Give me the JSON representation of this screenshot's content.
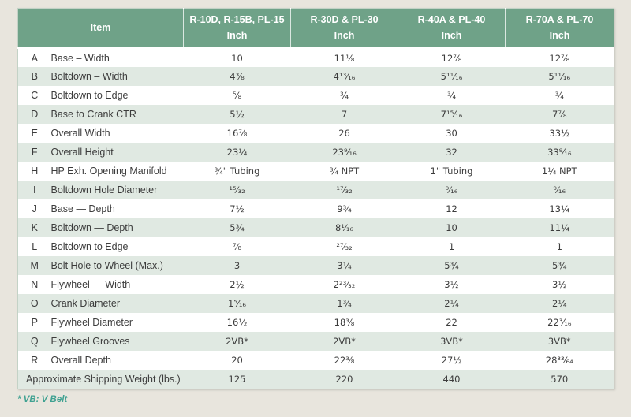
{
  "colors": {
    "page_bg": "#e8e5dd",
    "header_green": "#6fa288",
    "stripe_green": "#e0e9e2",
    "row_white": "#ffffff",
    "text_dark": "#3c3c3c",
    "header_text": "#ffffff",
    "note_teal": "#3fa191",
    "table_border": "#c3d2c6"
  },
  "table": {
    "item_header": "Item",
    "unit_label": "Inch",
    "columns": [
      {
        "models": "R-10D, R-15B, PL-15",
        "unit": "Inch"
      },
      {
        "models": "R-30D & PL-30",
        "unit": "Inch"
      },
      {
        "models": "R-40A & PL-40",
        "unit": "Inch"
      },
      {
        "models": "R-70A & PL-70",
        "unit": "Inch"
      }
    ],
    "rows": [
      {
        "letter": "A",
        "item": "Base – Width",
        "values": [
          "10",
          "11⅛",
          "12⅞",
          "12⅞"
        ]
      },
      {
        "letter": "B",
        "item": "Boltdown – Width",
        "values": [
          "4⅜",
          "4¹³⁄₁₆",
          "5¹¹⁄₁₆",
          "5¹¹⁄₁₆"
        ]
      },
      {
        "letter": "C",
        "item": "Boltdown to Edge",
        "values": [
          "⅝",
          "¾",
          "¾",
          "¾"
        ]
      },
      {
        "letter": "D",
        "item": "Base to Crank CTR",
        "values": [
          "5½",
          "7",
          "7¹⁵⁄₁₆",
          "7⅞"
        ]
      },
      {
        "letter": "E",
        "item": "Overall Width",
        "values": [
          "16⅞",
          "26",
          "30",
          "33½"
        ]
      },
      {
        "letter": "F",
        "item": "Overall Height",
        "values": [
          "23¼",
          "23⁹⁄₁₆",
          "32",
          "33⁹⁄₁₆"
        ]
      },
      {
        "letter": "H",
        "item": "HP Exh. Opening Manifold",
        "values": [
          "¾\" Tubing",
          "¾ NPT",
          "1\" Tubing",
          "1¼ NPT"
        ]
      },
      {
        "letter": "I",
        "item": "Boltdown Hole Diameter",
        "values": [
          "¹⁵⁄₃₂",
          "¹⁷⁄₃₂",
          "⁹⁄₁₆",
          "⁹⁄₁₆"
        ]
      },
      {
        "letter": "J",
        "item": "Base — Depth",
        "values": [
          "7½",
          "9¾",
          "12",
          "13¼"
        ]
      },
      {
        "letter": "K",
        "item": "Boltdown — Depth",
        "values": [
          "5¾",
          "8¹⁄₁₆",
          "10",
          "11¼"
        ]
      },
      {
        "letter": "L",
        "item": "Boltdown to Edge",
        "values": [
          "⅞",
          "²⁷⁄₃₂",
          "1",
          "1"
        ]
      },
      {
        "letter": "M",
        "item": "Bolt Hole to Wheel (Max.)",
        "values": [
          "3",
          "3¼",
          "5¾",
          "5¾"
        ]
      },
      {
        "letter": "N",
        "item": "Flywheel — Width",
        "values": [
          "2½",
          "2²³⁄₃₂",
          "3½",
          "3½"
        ]
      },
      {
        "letter": "O",
        "item": "Crank Diameter",
        "values": [
          "1⁵⁄₁₆",
          "1¾",
          "2¼",
          "2¼"
        ]
      },
      {
        "letter": "P",
        "item": "Flywheel Diameter",
        "values": [
          "16½",
          "18⅜",
          "22",
          "22³⁄₁₆"
        ]
      },
      {
        "letter": "Q",
        "item": "Flywheel Grooves",
        "values": [
          "2VB*",
          "2VB*",
          "3VB*",
          "3VB*"
        ]
      },
      {
        "letter": "R",
        "item": "Overall Depth",
        "values": [
          "20",
          "22⅜",
          "27½",
          "28³³⁄₆₄"
        ]
      }
    ],
    "summary_row": {
      "label": "Approximate Shipping Weight (lbs.)",
      "values": [
        "125",
        "220",
        "440",
        "570"
      ]
    }
  },
  "note": "* VB: V Belt"
}
